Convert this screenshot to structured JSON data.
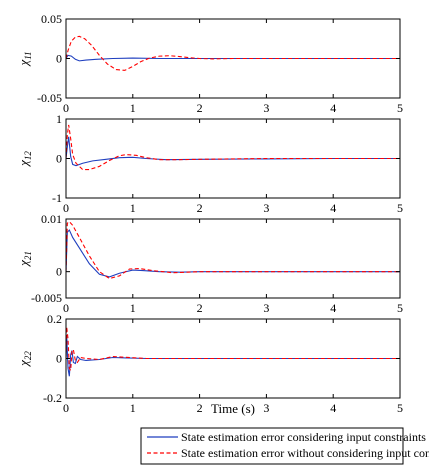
{
  "chart_data": [
    {
      "type": "line",
      "ylabel_main": "χ",
      "ylabel_sub": "11",
      "xlim": [
        0,
        5
      ],
      "ylim": [
        -0.05,
        0.05
      ],
      "xticks": [
        "0",
        "1",
        "2",
        "3",
        "4",
        "5"
      ],
      "yticks": [
        {
          "v": 0.05,
          "label": "0.05"
        },
        {
          "v": 0,
          "label": "0"
        },
        {
          "v": -0.05,
          "label": "-0.05"
        }
      ],
      "series": [
        {
          "x": [
            0,
            0.03,
            0.08,
            0.14,
            0.2,
            0.3,
            0.45,
            0.7,
            1.0,
            1.4,
            2.0,
            5.0
          ],
          "y": [
            0,
            0.004,
            0.003,
            -0.001,
            -0.003,
            -0.002,
            -0.001,
            0,
            0.0005,
            0,
            0,
            0
          ]
        },
        {
          "x": [
            0,
            0.03,
            0.08,
            0.14,
            0.2,
            0.28,
            0.38,
            0.5,
            0.62,
            0.75,
            0.88,
            1.0,
            1.12,
            1.25,
            1.4,
            1.55,
            1.7,
            1.85,
            2.0,
            2.2,
            2.5,
            3.0,
            5.0
          ],
          "y": [
            0,
            0.01,
            0.022,
            0.027,
            0.028,
            0.025,
            0.017,
            0.004,
            -0.007,
            -0.014,
            -0.015,
            -0.01,
            -0.004,
            0.0005,
            0.003,
            0.0035,
            0.0025,
            0.001,
            0,
            -0.0005,
            0,
            0,
            0
          ]
        }
      ]
    },
    {
      "type": "line",
      "ylabel_main": "χ",
      "ylabel_sub": "12",
      "xlim": [
        0,
        5
      ],
      "ylim": [
        -1,
        1
      ],
      "xticks": [
        "0",
        "1",
        "2",
        "3",
        "4",
        "5"
      ],
      "yticks": [
        {
          "v": 1,
          "label": "1"
        },
        {
          "v": 0,
          "label": "0"
        },
        {
          "v": -1,
          "label": "-1"
        }
      ],
      "series": [
        {
          "x": [
            0,
            0.02,
            0.04,
            0.07,
            0.1,
            0.15,
            0.25,
            0.4,
            0.6,
            0.8,
            1.0,
            1.2,
            1.5,
            2.0,
            3.0,
            4.0,
            5.0
          ],
          "y": [
            0,
            0.3,
            0.55,
            0.05,
            -0.15,
            -0.18,
            -0.12,
            -0.06,
            -0.02,
            0.02,
            0.03,
            0.0,
            -0.03,
            -0.02,
            -0.01,
            0.0,
            0.0
          ]
        },
        {
          "x": [
            0,
            0.02,
            0.04,
            0.07,
            0.1,
            0.15,
            0.25,
            0.35,
            0.5,
            0.65,
            0.8,
            0.9,
            1.05,
            1.2,
            1.4,
            1.7,
            2.0,
            3.0,
            5.0
          ],
          "y": [
            0,
            0.6,
            0.85,
            0.5,
            0.1,
            -0.12,
            -0.28,
            -0.28,
            -0.2,
            -0.05,
            0.07,
            0.1,
            0.08,
            0.02,
            -0.03,
            -0.03,
            -0.02,
            0,
            0
          ]
        }
      ]
    },
    {
      "type": "line",
      "ylabel_main": "χ",
      "ylabel_sub": "21",
      "xlim": [
        0,
        5
      ],
      "ylim": [
        -0.005,
        0.01
      ],
      "xticks": [
        "0",
        "1",
        "2",
        "3",
        "4",
        "5"
      ],
      "yticks": [
        {
          "v": 0.01,
          "label": "0.01"
        },
        {
          "v": 0,
          "label": "0"
        },
        {
          "v": -0.005,
          "label": "-0.005"
        }
      ],
      "series": [
        {
          "x": [
            0,
            0.02,
            0.05,
            0.1,
            0.2,
            0.35,
            0.5,
            0.65,
            0.8,
            1.0,
            1.15,
            1.4,
            1.7,
            2.0,
            5.0
          ],
          "y": [
            0,
            0.0075,
            0.0079,
            0.0065,
            0.0045,
            0.0015,
            -0.0005,
            -0.001,
            -0.0003,
            0.0003,
            0.0002,
            0,
            -0.0001,
            0,
            0
          ]
        },
        {
          "x": [
            0,
            0.02,
            0.05,
            0.1,
            0.2,
            0.35,
            0.5,
            0.65,
            0.8,
            0.95,
            1.1,
            1.3,
            1.6,
            2.0,
            5.0
          ],
          "y": [
            0,
            0.0092,
            0.0095,
            0.0088,
            0.0065,
            0.003,
            0.0,
            -0.0013,
            -0.0008,
            0.0005,
            0.0006,
            0.0002,
            -0.0002,
            0,
            0
          ]
        }
      ]
    },
    {
      "type": "line",
      "ylabel_main": "χ",
      "ylabel_sub": "22",
      "xlim": [
        0,
        5
      ],
      "ylim": [
        -0.2,
        0.2
      ],
      "xticks": [
        "0",
        "1",
        "2",
        "3",
        "4",
        "5"
      ],
      "yticks": [
        {
          "v": 0.2,
          "label": "0.2"
        },
        {
          "v": 0,
          "label": "0"
        },
        {
          "v": -0.2,
          "label": "-0.2"
        }
      ],
      "xlabel": "Time (s)",
      "series": [
        {
          "x": [
            0,
            0.01,
            0.03,
            0.05,
            0.07,
            0.09,
            0.11,
            0.14,
            0.17,
            0.22,
            0.3,
            0.5,
            0.7,
            0.9,
            1.2,
            1.5,
            5.0
          ],
          "y": [
            0,
            0.12,
            -0.05,
            -0.09,
            0.02,
            0.04,
            -0.02,
            -0.025,
            0.01,
            -0.005,
            -0.01,
            -0.005,
            0.005,
            0.003,
            0,
            0,
            0
          ]
        },
        {
          "x": [
            0,
            0.01,
            0.03,
            0.05,
            0.07,
            0.09,
            0.11,
            0.14,
            0.17,
            0.22,
            0.3,
            0.5,
            0.7,
            0.9,
            1.2,
            1.5,
            5.0
          ],
          "y": [
            0,
            0.16,
            0.1,
            -0.05,
            -0.06,
            0.04,
            0.045,
            -0.01,
            -0.02,
            0.005,
            0.0,
            -0.005,
            0.01,
            0.006,
            0,
            0,
            0
          ]
        }
      ]
    }
  ],
  "legend": {
    "entries": [
      {
        "label": "State estimation  error considering input constraints",
        "color": "#1f3fbf",
        "style": "solid"
      },
      {
        "label": "State estimation error without considering input constraints",
        "color": "#ff0000",
        "style": "dashed"
      }
    ]
  }
}
